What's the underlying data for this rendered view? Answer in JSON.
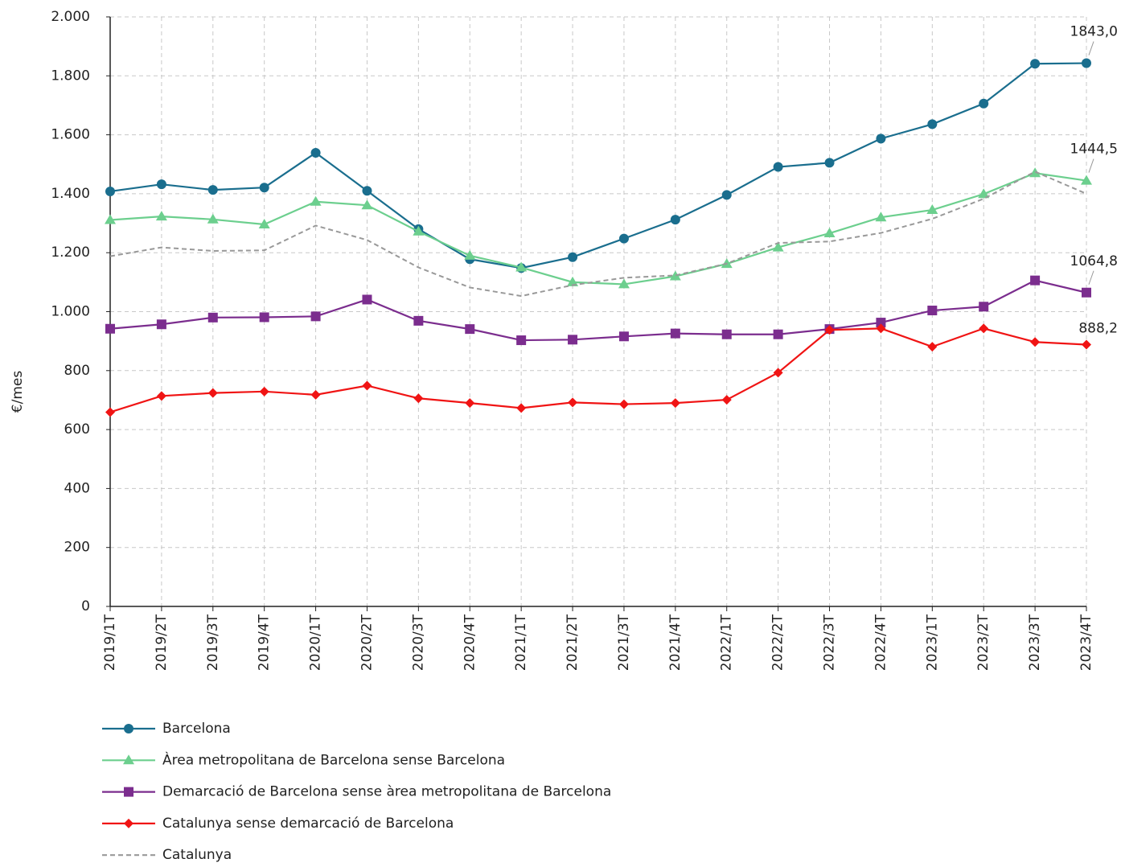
{
  "chart_data": {
    "type": "line",
    "y_label": "€/mes",
    "categories": [
      "2019/1T",
      "2019/2T",
      "2019/3T",
      "2019/4T",
      "2020/1T",
      "2020/2T",
      "2020/3T",
      "2020/4T",
      "2021/1T",
      "2021/2T",
      "2021/3T",
      "2021/4T",
      "2022/1T",
      "2022/2T",
      "2022/3T",
      "2022/4T",
      "2023/1T",
      "2023/2T",
      "2023/3T",
      "2023/4T"
    ],
    "ylim": [
      0,
      2000
    ],
    "yticks": [
      0,
      200,
      400,
      600,
      800,
      {
        "value": 1000,
        "label": "1.000"
      },
      {
        "value": 1200,
        "label": "1.200"
      },
      {
        "value": 1400,
        "label": "1.400"
      },
      {
        "value": 1600,
        "label": "1.600"
      },
      {
        "value": 1800,
        "label": "1.800"
      },
      {
        "value": 2000,
        "label": "2.000"
      }
    ],
    "grid": true,
    "legend": "bottom-left",
    "series": [
      {
        "name": "Barcelona",
        "color": "#1a6e8e",
        "marker": "circle",
        "values": [
          1408,
          1432,
          1413,
          1421,
          1539,
          1410,
          1280,
          1178,
          1148,
          1185,
          1248,
          1312,
          1396,
          1491,
          1505,
          1587,
          1636,
          1706,
          1841,
          1843.0
        ],
        "value_labels": [
          null,
          null,
          null,
          null,
          null,
          null,
          null,
          null,
          null,
          null,
          null,
          null,
          null,
          null,
          null,
          null,
          null,
          null,
          null,
          "1843,0"
        ]
      },
      {
        "name": "Àrea metropolitana de Barcelona sense Barcelona",
        "color": "#6ccf8e",
        "marker": "triangle",
        "values": [
          1311,
          1323,
          1313,
          1296,
          1373,
          1361,
          1272,
          1190,
          1150,
          1100,
          1093,
          1120,
          1162,
          1218,
          1266,
          1320,
          1345,
          1399,
          1470,
          1444.5
        ],
        "value_labels": [
          null,
          null,
          null,
          null,
          null,
          null,
          null,
          null,
          null,
          null,
          null,
          null,
          null,
          null,
          null,
          null,
          null,
          null,
          null,
          "1444,5"
        ]
      },
      {
        "name": "Demarcació de Barcelona sense àrea metropolitana de Barcelona",
        "color": "#7b2d8e",
        "marker": "square",
        "values": [
          942,
          957,
          980,
          981,
          984,
          1041,
          969,
          941,
          903,
          905,
          916,
          926,
          923,
          923,
          941,
          963,
          1004,
          1017,
          1106,
          1064.8
        ],
        "value_labels": [
          null,
          null,
          null,
          null,
          null,
          null,
          null,
          null,
          null,
          null,
          null,
          null,
          null,
          null,
          null,
          null,
          null,
          null,
          null,
          "1064,8"
        ]
      },
      {
        "name": "Catalunya sense demarcació de Barcelona",
        "color": "#f01414",
        "marker": "diamond",
        "values": [
          659,
          714,
          724,
          729,
          718,
          749,
          706,
          690,
          673,
          692,
          686,
          690,
          701,
          793,
          938,
          943,
          881,
          943,
          897,
          888.2
        ],
        "value_labels": [
          null,
          null,
          null,
          null,
          null,
          null,
          null,
          null,
          null,
          null,
          null,
          null,
          null,
          null,
          null,
          null,
          null,
          null,
          null,
          "888,2"
        ]
      },
      {
        "name": "Catalunya",
        "color": "#999999",
        "marker": "none",
        "dashed": true,
        "values": [
          1188,
          1218,
          1206,
          1208,
          1292,
          1243,
          1150,
          1082,
          1053,
          1090,
          1115,
          1123,
          1163,
          1233,
          1238,
          1267,
          1315,
          1383,
          1475,
          1400
        ]
      }
    ]
  }
}
